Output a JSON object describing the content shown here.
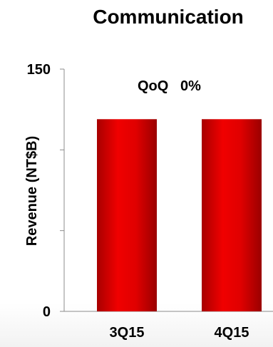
{
  "chart_data": {
    "type": "bar",
    "title": "Communication",
    "xlabel": "",
    "ylabel": "Revenue (NT$B)",
    "categories": [
      "3Q15",
      "4Q15"
    ],
    "values": [
      119,
      119
    ],
    "ylim": [
      0,
      150
    ],
    "yticks": [
      0,
      150
    ],
    "yticks_labels": [
      "0",
      "150"
    ],
    "annotation": {
      "qoq_label": "QoQ",
      "qoq_value": "0%"
    },
    "bar_color": "#d40000",
    "grid": false,
    "legend": "none"
  }
}
